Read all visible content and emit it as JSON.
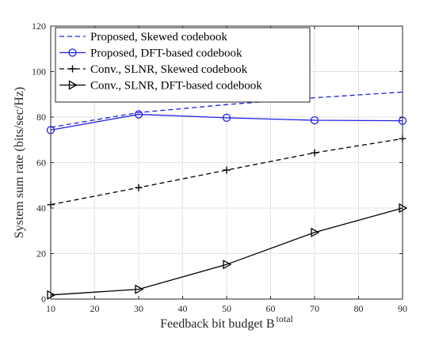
{
  "chart_data": {
    "type": "line",
    "xlabel": "Feedback bit budget B",
    "xlabel_superscript": "total",
    "ylabel": "System sum rate (bits/sec/Hz)",
    "x": [
      10,
      30,
      50,
      70,
      90
    ],
    "xlim": [
      10,
      90
    ],
    "ylim": [
      0,
      120
    ],
    "xticks": [
      10,
      20,
      30,
      40,
      50,
      60,
      70,
      80,
      90
    ],
    "yticks": [
      0,
      20,
      40,
      60,
      80,
      100,
      120
    ],
    "grid": true,
    "legend_position": "top-left",
    "series": [
      {
        "name": "Proposed, Skewed codebook",
        "values": [
          75.5,
          82,
          85.5,
          88.5,
          91
        ],
        "color": "#1f1fe6",
        "line": "dashed",
        "marker": "none"
      },
      {
        "name": "Proposed, DFT-based codebook",
        "values": [
          74.3,
          81.2,
          79.7,
          78.6,
          78.4
        ],
        "color": "#1f1fe6",
        "line": "solid",
        "marker": "circle"
      },
      {
        "name": "Conv., SLNR, Skewed codebook",
        "values": [
          41.5,
          49,
          56.7,
          64.3,
          70.5
        ],
        "color": "#000000",
        "line": "dashed",
        "marker": "plus"
      },
      {
        "name": "Conv., SLNR, DFT-based codebook",
        "values": [
          1.8,
          4.3,
          15.2,
          29.3,
          40
        ],
        "color": "#000000",
        "line": "solid",
        "marker": "triangle-right"
      }
    ]
  }
}
